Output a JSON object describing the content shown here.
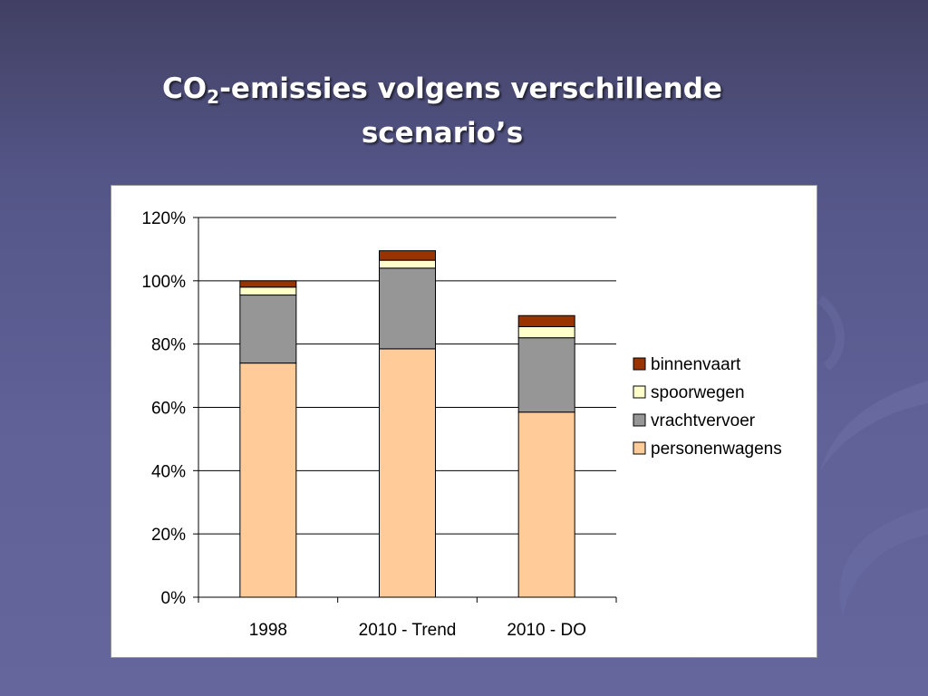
{
  "slide": {
    "title_line1_prefix": "CO",
    "title_subscript": "2",
    "title_line1_suffix": "-emissies volgens verschillende",
    "title_line2": "scenario’s"
  },
  "colors": {
    "binnenvaart": "#993300",
    "spoorwegen": "#ffffcc",
    "vrachtvervoer": "#969696",
    "personenwagens": "#ffcc99"
  },
  "chart_data": {
    "type": "bar",
    "stacked": true,
    "categories": [
      "1998",
      "2010 - Trend",
      "2010 - DO"
    ],
    "series": [
      {
        "name": "personenwagens",
        "values": [
          74,
          78.5,
          58.5
        ]
      },
      {
        "name": "vrachtvervoer",
        "values": [
          21.5,
          25.5,
          23.5
        ]
      },
      {
        "name": "spoorwegen",
        "values": [
          2.5,
          2.5,
          3.5
        ]
      },
      {
        "name": "binnenvaart",
        "values": [
          2,
          3,
          3.5
        ]
      }
    ],
    "yticks": [
      "0%",
      "20%",
      "40%",
      "60%",
      "80%",
      "100%",
      "120%"
    ],
    "ylim": [
      0,
      120
    ],
    "grid": true,
    "legend_position": "right",
    "legend_order": [
      "binnenvaart",
      "spoorwegen",
      "vrachtvervoer",
      "personenwagens"
    ]
  }
}
